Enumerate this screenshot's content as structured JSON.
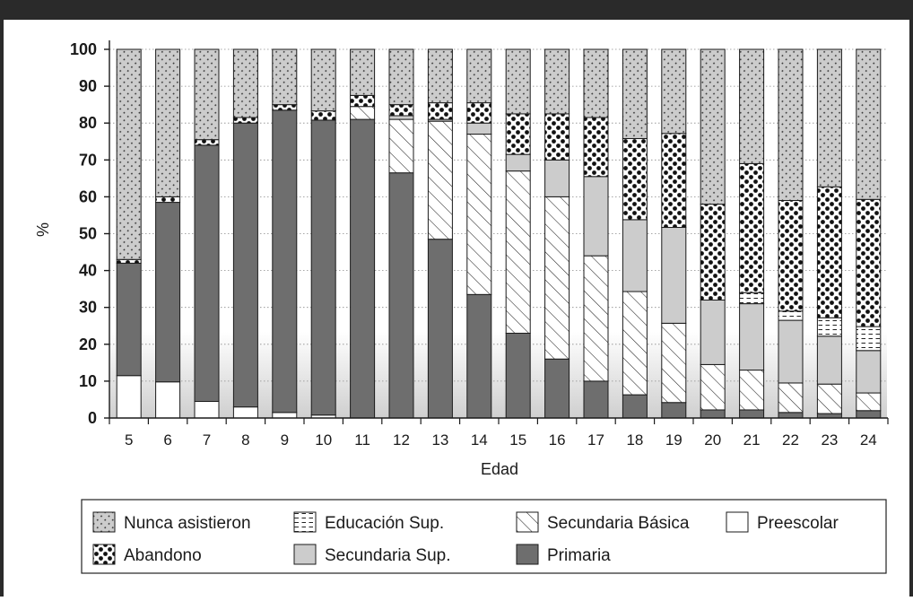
{
  "chart_data": {
    "type": "bar",
    "stacked": true,
    "percent": true,
    "xlabel": "Edad",
    "ylabel": "%",
    "ylim": [
      0,
      100
    ],
    "yticks": [
      0,
      10,
      20,
      30,
      40,
      50,
      60,
      70,
      80,
      90,
      100
    ],
    "grid": "horizontal dotted",
    "legend_position": "bottom",
    "categories": [
      "5",
      "6",
      "7",
      "8",
      "9",
      "10",
      "11",
      "12",
      "13",
      "14",
      "15",
      "16",
      "17",
      "18",
      "19",
      "20",
      "21",
      "22",
      "23",
      "24"
    ],
    "series": [
      {
        "name": "Preescolar",
        "color": "#ffffff",
        "pattern": "none",
        "values": [
          11.5,
          9.8,
          4.5,
          3.0,
          1.5,
          0.8,
          0,
          0,
          0,
          0,
          0,
          0,
          0,
          0,
          0,
          0,
          0,
          0,
          0,
          0
        ]
      },
      {
        "name": "Primaria",
        "color": "#6e6e6e",
        "pattern": "none",
        "values": [
          30.5,
          48.7,
          69.5,
          77.0,
          82.0,
          80.0,
          81.0,
          66.5,
          48.5,
          33.5,
          23.0,
          16.0,
          10.0,
          6.3,
          4.2,
          2.2,
          2.2,
          1.5,
          1.2,
          2.0
        ]
      },
      {
        "name": "Secundaria Básica",
        "color": "#ffffff",
        "pattern": "hatch",
        "values": [
          0,
          0,
          0,
          0,
          0,
          0,
          3.5,
          14.5,
          32.0,
          43.5,
          44.0,
          44.0,
          34.0,
          28.0,
          21.5,
          12.3,
          10.8,
          8.0,
          8.0,
          4.8
        ]
      },
      {
        "name": "Secundaria Sup.",
        "color": "#cccccc",
        "pattern": "none",
        "values": [
          0,
          0,
          0,
          0,
          0,
          0,
          0,
          1.0,
          0.5,
          3.0,
          4.5,
          10.0,
          21.5,
          19.5,
          26.0,
          17.5,
          18.0,
          17.0,
          13.0,
          11.5
        ]
      },
      {
        "name": "Educación Sup.",
        "color": "#ffffff",
        "pattern": "dash",
        "values": [
          0,
          0,
          0,
          0,
          0,
          0,
          0,
          0,
          0,
          0,
          0,
          0,
          0,
          0,
          0,
          0,
          3.0,
          2.5,
          5.0,
          6.5
        ]
      },
      {
        "name": "Abandono",
        "color": "#ffffff",
        "pattern": "dots",
        "values": [
          1.0,
          1.5,
          1.5,
          1.5,
          1.5,
          2.5,
          3.0,
          3.0,
          4.5,
          5.5,
          11.0,
          12.5,
          16.0,
          22.0,
          25.5,
          26.0,
          35.0,
          30.0,
          35.5,
          34.5
        ]
      },
      {
        "name": "Nunca asistieron",
        "color": "#cccccc",
        "pattern": "diag-dots",
        "values": [
          57.0,
          40.0,
          24.5,
          18.5,
          15.0,
          16.7,
          12.5,
          15.0,
          14.5,
          14.5,
          17.5,
          17.5,
          18.5,
          24.2,
          22.8,
          42.0,
          31.0,
          41.0,
          37.3,
          40.7
        ]
      }
    ],
    "legend": [
      {
        "series": "Nunca asistieron"
      },
      {
        "series": "Educación Sup."
      },
      {
        "series": "Secundaria Básica"
      },
      {
        "series": "Preescolar"
      },
      {
        "series": "Abandono"
      },
      {
        "series": "Secundaria Sup."
      },
      {
        "series": "Primaria"
      }
    ]
  }
}
